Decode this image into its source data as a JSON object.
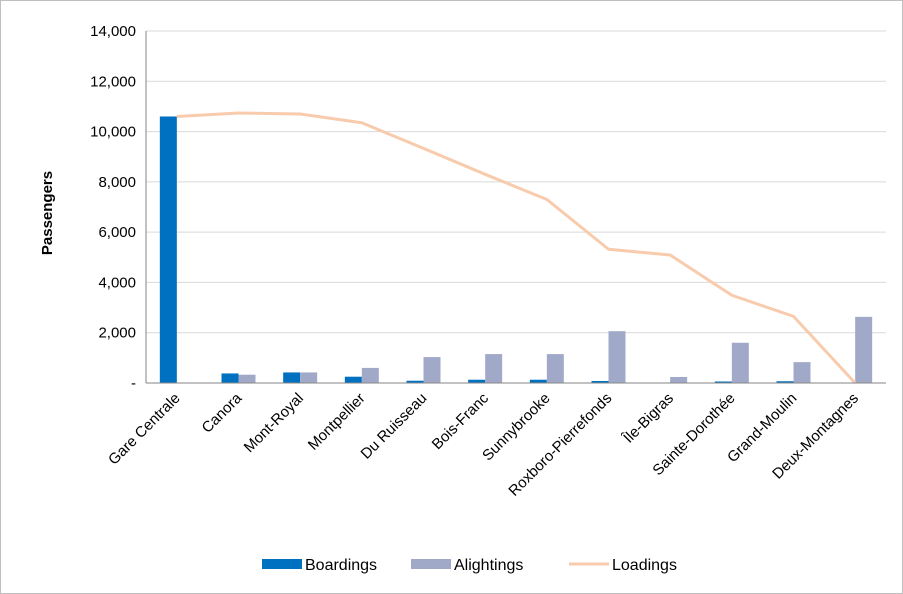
{
  "chart_data": {
    "type": "bar",
    "categories": [
      "Gare Centrale",
      "Canora",
      "Mont-Royal",
      "Montpellier",
      "Du Ruisseau",
      "Bois-Franc",
      "Sunnybrooke",
      "Roxboro-Pierrefonds",
      "Île-Bigras",
      "Sainte-Dorothée",
      "Grand-Moulin",
      "Deux-Montagnes"
    ],
    "series": [
      {
        "name": "Boardings",
        "kind": "bar",
        "color": "#0070c0",
        "values": [
          10600,
          380,
          420,
          250,
          90,
          130,
          130,
          80,
          10,
          60,
          70,
          0
        ]
      },
      {
        "name": "Alightings",
        "kind": "bar",
        "color": "#a1a9c8",
        "values": [
          0,
          330,
          420,
          600,
          1030,
          1150,
          1150,
          2060,
          240,
          1600,
          830,
          2630
        ]
      },
      {
        "name": "Loadings",
        "kind": "line",
        "color": "#f8cbad",
        "values": [
          10600,
          10740,
          10700,
          10350,
          9330,
          8300,
          7300,
          5320,
          5090,
          3490,
          2650,
          0
        ]
      }
    ],
    "yticks": [
      "-",
      "2,000",
      "4,000",
      "6,000",
      "8,000",
      "10,000",
      "12,000",
      "14,000"
    ],
    "ylabel": "Passengers",
    "xlabel": "",
    "ylim": [
      0,
      14000
    ],
    "grid": true,
    "legend_position": "bottom"
  }
}
